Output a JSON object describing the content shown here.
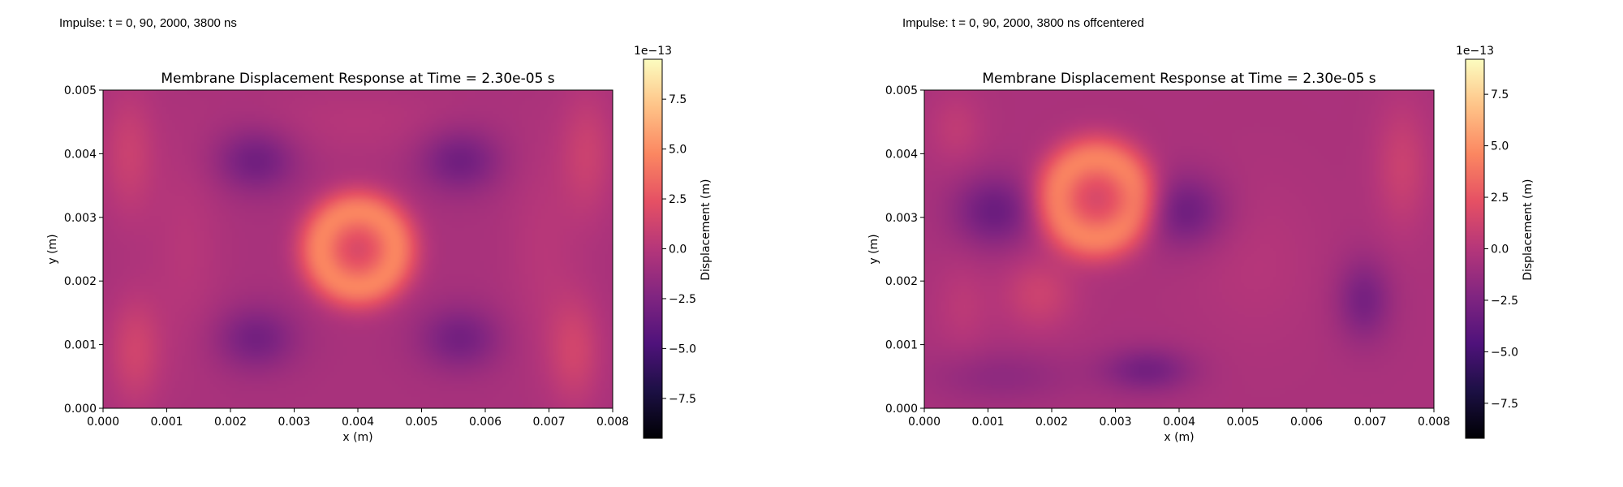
{
  "figure": {
    "captions": [
      "Impulse: t = 0, 90, 2000, 3800 ns",
      "Impulse: t = 0, 90, 2000, 3800 ns offcentered"
    ]
  },
  "colormap": {
    "name": "magma",
    "stops": [
      "#000004",
      "#1c1044",
      "#4f127b",
      "#812581",
      "#b5367a",
      "#e55064",
      "#fb8761",
      "#fec287",
      "#fcfdbf"
    ]
  },
  "chart_data": [
    {
      "type": "heatmap",
      "title": "Membrane Displacement Response at Time = 2.30e-05 s",
      "xlabel": "x (m)",
      "ylabel": "y (m)",
      "xlim": [
        0.0,
        0.008
      ],
      "ylim": [
        0.0,
        0.005
      ],
      "x_ticks": [
        "0.000",
        "0.001",
        "0.002",
        "0.003",
        "0.004",
        "0.005",
        "0.006",
        "0.007",
        "0.008"
      ],
      "y_ticks": [
        "0.000",
        "0.001",
        "0.002",
        "0.003",
        "0.004",
        "0.005"
      ],
      "colorbar": {
        "label": "Displacement (m)",
        "offset": "1e−13",
        "range": [
          -9.5,
          9.5
        ],
        "ticks": [
          -7.5,
          -5.0,
          -2.5,
          0.0,
          2.5,
          5.0,
          7.5
        ],
        "tick_labels": [
          "−7.5",
          "−5.0",
          "−2.5",
          "0.0",
          "2.5",
          "5.0",
          "7.5"
        ]
      },
      "field": {
        "units": "1e-13 m",
        "base": -0.6,
        "features": [
          {
            "kind": "ring",
            "x": 0.004,
            "y": 0.0025,
            "r": 0.00062,
            "w": 0.00025,
            "amp": 4.6
          },
          {
            "kind": "blob",
            "x": 0.004,
            "y": 0.0025,
            "sx": 0.0004,
            "sy": 0.0004,
            "amp": 2.2
          },
          {
            "kind": "blob",
            "x": 0.0024,
            "y": 0.0039,
            "sx": 0.00045,
            "sy": 0.00035,
            "amp": -2.6
          },
          {
            "kind": "blob",
            "x": 0.0056,
            "y": 0.0039,
            "sx": 0.00045,
            "sy": 0.00035,
            "amp": -2.6
          },
          {
            "kind": "blob",
            "x": 0.0024,
            "y": 0.0011,
            "sx": 0.00045,
            "sy": 0.00035,
            "amp": -2.4
          },
          {
            "kind": "blob",
            "x": 0.0056,
            "y": 0.0011,
            "sx": 0.00045,
            "sy": 0.00035,
            "amp": -2.4
          },
          {
            "kind": "blob",
            "x": 0.0004,
            "y": 0.004,
            "sx": 0.0003,
            "sy": 0.0007,
            "amp": 1.6
          },
          {
            "kind": "blob",
            "x": 0.0076,
            "y": 0.004,
            "sx": 0.0003,
            "sy": 0.0007,
            "amp": 1.6
          },
          {
            "kind": "blob",
            "x": 0.0005,
            "y": 0.0009,
            "sx": 0.0003,
            "sy": 0.0006,
            "amp": 1.9
          },
          {
            "kind": "blob",
            "x": 0.0074,
            "y": 0.0009,
            "sx": 0.0003,
            "sy": 0.0006,
            "amp": 1.9
          },
          {
            "kind": "blob",
            "x": 0.0013,
            "y": 0.0025,
            "sx": 0.0004,
            "sy": 0.0012,
            "amp": 0.7
          },
          {
            "kind": "blob",
            "x": 0.0069,
            "y": 0.0025,
            "sx": 0.0004,
            "sy": 0.0012,
            "amp": 0.7
          },
          {
            "kind": "blob",
            "x": 0.004,
            "y": 0.0045,
            "sx": 0.0012,
            "sy": 0.0004,
            "amp": 0.6
          }
        ]
      }
    },
    {
      "type": "heatmap",
      "title": "Membrane Displacement Response at Time = 2.30e-05 s",
      "xlabel": "x (m)",
      "ylabel": "y (m)",
      "xlim": [
        0.0,
        0.008
      ],
      "ylim": [
        0.0,
        0.005
      ],
      "x_ticks": [
        "0.000",
        "0.001",
        "0.002",
        "0.003",
        "0.004",
        "0.005",
        "0.006",
        "0.007",
        "0.008"
      ],
      "y_ticks": [
        "0.000",
        "0.001",
        "0.002",
        "0.003",
        "0.004",
        "0.005"
      ],
      "colorbar": {
        "label": "Displacement (m)",
        "offset": "1e−13",
        "range": [
          -9.2,
          9.2
        ],
        "ticks": [
          -7.5,
          -5.0,
          -2.5,
          0.0,
          2.5,
          5.0,
          7.5
        ],
        "tick_labels": [
          "−7.5",
          "−5.0",
          "−2.5",
          "0.0",
          "2.5",
          "5.0",
          "7.5"
        ]
      },
      "field": {
        "units": "1e-13 m",
        "base": -0.5,
        "features": [
          {
            "kind": "ring",
            "x": 0.0027,
            "y": 0.0033,
            "r": 0.00065,
            "w": 0.00026,
            "amp": 4.4
          },
          {
            "kind": "blob",
            "x": 0.0027,
            "y": 0.0033,
            "sx": 0.0004,
            "sy": 0.0004,
            "amp": 2.0
          },
          {
            "kind": "blob",
            "x": 0.0011,
            "y": 0.0031,
            "sx": 0.00045,
            "sy": 0.0004,
            "amp": -2.8
          },
          {
            "kind": "blob",
            "x": 0.0041,
            "y": 0.0031,
            "sx": 0.00045,
            "sy": 0.0004,
            "amp": -2.7
          },
          {
            "kind": "blob",
            "x": 0.0035,
            "y": 0.0006,
            "sx": 0.0005,
            "sy": 0.00025,
            "amp": -2.4
          },
          {
            "kind": "blob",
            "x": 0.0069,
            "y": 0.0017,
            "sx": 0.0003,
            "sy": 0.00045,
            "amp": -2.3
          },
          {
            "kind": "blob",
            "x": 0.0012,
            "y": 0.0005,
            "sx": 0.0008,
            "sy": 0.0003,
            "amp": -1.2
          },
          {
            "kind": "blob",
            "x": 0.0018,
            "y": 0.0018,
            "sx": 0.0004,
            "sy": 0.0004,
            "amp": 1.6
          },
          {
            "kind": "blob",
            "x": 0.0075,
            "y": 0.0038,
            "sx": 0.0003,
            "sy": 0.0007,
            "amp": 1.5
          },
          {
            "kind": "blob",
            "x": 0.0005,
            "y": 0.0044,
            "sx": 0.0003,
            "sy": 0.0004,
            "amp": 1.0
          },
          {
            "kind": "blob",
            "x": 0.0006,
            "y": 0.0016,
            "sx": 0.0003,
            "sy": 0.0005,
            "amp": 0.8
          },
          {
            "kind": "blob",
            "x": 0.0052,
            "y": 0.0023,
            "sx": 0.0007,
            "sy": 0.0009,
            "amp": 0.5
          }
        ]
      }
    }
  ]
}
